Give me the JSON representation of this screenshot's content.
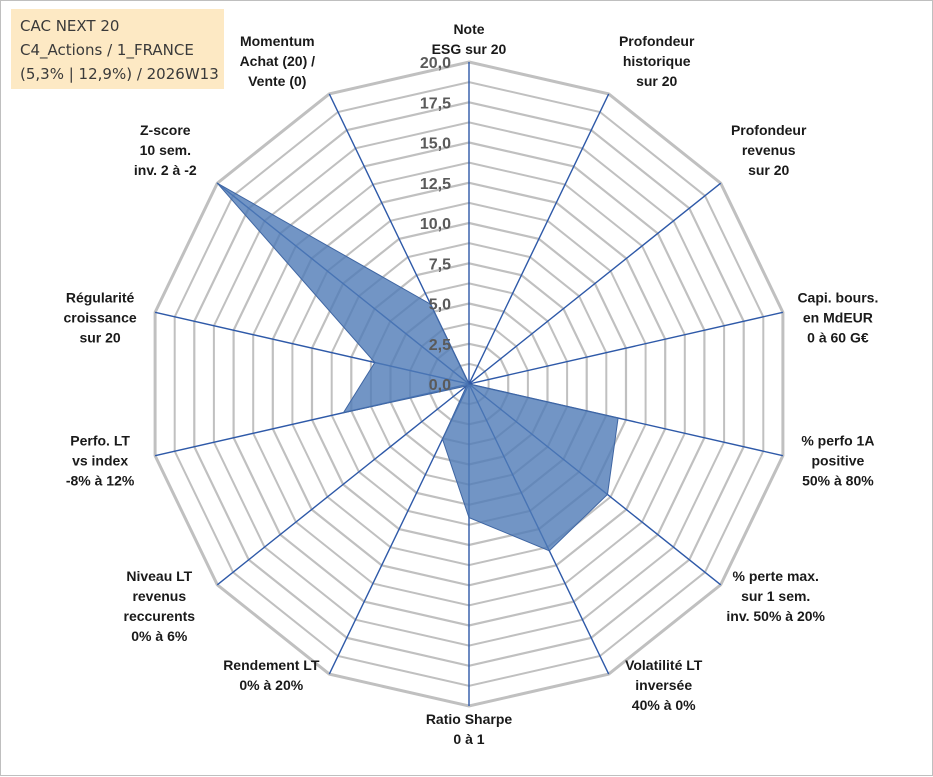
{
  "info": {
    "line1": "CAC NEXT 20",
    "line2": "C4_Actions / 1_FRANCE",
    "line3": "(5,3% | 12,9%) / 2026W13"
  },
  "colors": {
    "fill": "#4f7ab7",
    "fill_stroke": "#3f66a3",
    "grid": "#c0c0c0",
    "spoke": "#2e59a8",
    "info_bg": "#fde9c4"
  },
  "chart_data": {
    "type": "radar",
    "title": "",
    "rmin": 0,
    "rmax": 20,
    "ticks": [
      "0,0",
      "2,5",
      "5,0",
      "7,5",
      "10,0",
      "12,5",
      "15,0",
      "17,5",
      "20,0"
    ],
    "tick_values": [
      0,
      2.5,
      5,
      7.5,
      10,
      12.5,
      15,
      17.5,
      20
    ],
    "axes": [
      {
        "label": [
          "Note",
          "ESG sur 20"
        ],
        "value": 0
      },
      {
        "label": [
          "Profondeur",
          "historique",
          "sur 20"
        ],
        "value": 0
      },
      {
        "label": [
          "Profondeur",
          "revenus",
          "sur 20"
        ],
        "value": 0
      },
      {
        "label": [
          "Capi. bours.",
          "en MdEUR",
          "0 à 60 G€"
        ],
        "value": 0
      },
      {
        "label": [
          "% perfo 1A",
          "positive",
          "50% à 80%"
        ],
        "value": 9.5
      },
      {
        "label": [
          "% perte max.",
          "sur 1 sem.",
          "inv. 50% à 20%"
        ],
        "value": 11.0
      },
      {
        "label": [
          "Volatilité LT",
          "inversée",
          "40% à 0%"
        ],
        "value": 11.5
      },
      {
        "label": [
          "Ratio Sharpe",
          "0 à 1"
        ],
        "value": 8.3
      },
      {
        "label": [
          "Rendement LT",
          "0% à 20%"
        ],
        "value": 3.8
      },
      {
        "label": [
          "Niveau LT",
          "revenus",
          "reccurents",
          "0% à 6%"
        ],
        "value": 0.2
      },
      {
        "label": [
          "Perfo. LT",
          "vs index",
          "-8% à 12%"
        ],
        "value": 8.0
      },
      {
        "label": [
          "Régularité",
          "croissance",
          "sur 20"
        ],
        "value": 6.0
      },
      {
        "label": [
          "Z-score",
          "10 sem.",
          "inv. 2 à -2"
        ],
        "value": 20.0
      },
      {
        "label": [
          "Momentum",
          "Achat (20) /",
          "Vente (0)"
        ],
        "value": 5.5
      }
    ]
  }
}
